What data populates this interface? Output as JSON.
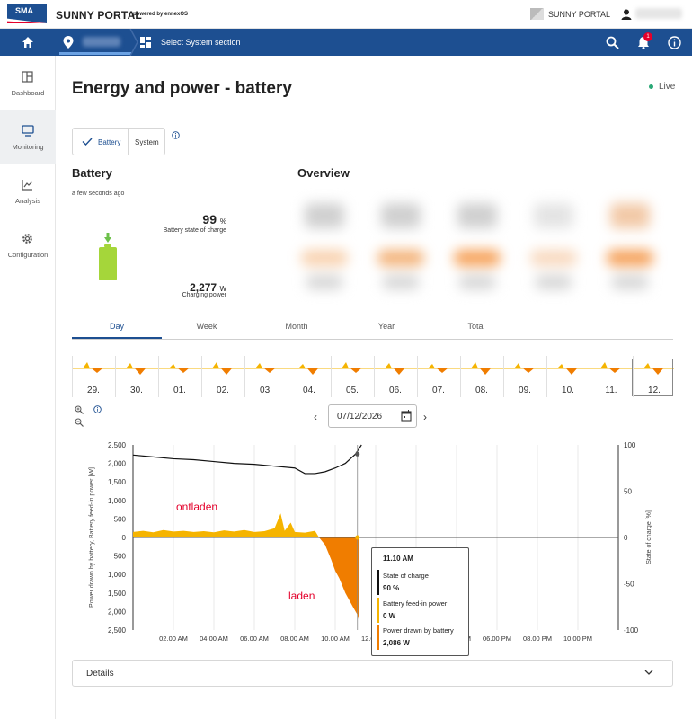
{
  "header": {
    "logo_text": "SMA",
    "brand": "SUNNY PORTAL",
    "brand_sub": "powered by ennexOS",
    "portal_link": "SUNNY PORTAL"
  },
  "nav": {
    "select_section": "Select System section",
    "notification_count": "1"
  },
  "sidebar": {
    "items": [
      {
        "label": "Dashboard",
        "icon": "dashboard-icon"
      },
      {
        "label": "Monitoring",
        "icon": "monitor-icon"
      },
      {
        "label": "Analysis",
        "icon": "chart-line-icon"
      },
      {
        "label": "Configuration",
        "icon": "gear-icon"
      }
    ]
  },
  "page": {
    "title": "Energy and power - battery",
    "live": "Live"
  },
  "toggle": {
    "option1": "Battery",
    "option2": "System"
  },
  "battery": {
    "heading": "Battery",
    "updated": "a few seconds ago",
    "soc_value": "99",
    "soc_unit": "%",
    "soc_label": "Battery state of charge",
    "power_value": "2,277",
    "power_unit": "W",
    "power_label": "Charging power"
  },
  "overview": {
    "heading": "Overview"
  },
  "tabs": [
    "Day",
    "Week",
    "Month",
    "Year",
    "Total"
  ],
  "strip_days": [
    "29.",
    "30.",
    "01.",
    "02.",
    "03.",
    "04.",
    "05.",
    "06.",
    "07.",
    "08.",
    "09.",
    "10.",
    "11.",
    "12."
  ],
  "date_picker": {
    "value": "07/12/2026"
  },
  "annotations": {
    "discharge": "ontladen",
    "charge": "laden"
  },
  "tooltip": {
    "time": "11.10 AM",
    "rows": [
      {
        "label": "State of charge",
        "value": "90 %",
        "color": "#111111"
      },
      {
        "label": "Battery feed-in power",
        "value": "0 W",
        "color": "#f5b400"
      },
      {
        "label": "Power drawn by battery",
        "value": "2,086 W",
        "color": "#f07d00"
      }
    ]
  },
  "details": {
    "label": "Details"
  },
  "colors": {
    "brand_blue": "#1d4f91",
    "feed_in": "#f5b400",
    "drawn": "#f07d00",
    "battery_green": "#a5d63a"
  },
  "chart_data": {
    "type": "area",
    "ylabel_left": "Power drawn by battery, Battery feed-in power [W]",
    "ylabel_right": "State of charge [%]",
    "y_left_ticks_top": [
      "2,500",
      "2,000",
      "1,500",
      "1,000",
      "500",
      "0"
    ],
    "y_left_ticks_bottom": [
      "500",
      "1,000",
      "1,500",
      "2,000",
      "2,500"
    ],
    "y_right_ticks": [
      "100",
      "50",
      "0",
      "-50",
      "-100"
    ],
    "x_ticks": [
      "02.00 AM",
      "04.00 AM",
      "06.00 AM",
      "08.00 AM",
      "10.00 AM",
      "12.00 PM",
      "02.00 PM",
      "04.00 PM",
      "06.00 PM",
      "08.00 PM",
      "10.00 PM"
    ],
    "xlim_hours": [
      0,
      24
    ],
    "ylim_power": [
      -2500,
      2500
    ],
    "ylim_soc": [
      -100,
      100
    ],
    "series": [
      {
        "name": "Battery feed-in power",
        "color": "#f5b400",
        "x": [
          0,
          0.5,
          1,
          1.5,
          2,
          2.5,
          3,
          3.5,
          4,
          4.5,
          5,
          5.5,
          6,
          6.5,
          7,
          7.3,
          7.5,
          7.8,
          8,
          8.5,
          9,
          9.2
        ],
        "y": [
          150,
          180,
          140,
          200,
          160,
          180,
          150,
          170,
          140,
          190,
          160,
          200,
          150,
          170,
          250,
          650,
          180,
          400,
          150,
          130,
          180,
          0
        ]
      },
      {
        "name": "Power drawn by battery",
        "color": "#f07d00",
        "x": [
          9.2,
          9.5,
          9.8,
          10,
          10.2,
          10.5,
          10.7,
          10.9,
          11.1,
          11.2
        ],
        "y": [
          0,
          -200,
          -600,
          -900,
          -1100,
          -1500,
          -1700,
          -1900,
          -2086,
          -2300
        ]
      },
      {
        "name": "State of charge",
        "color": "#111111",
        "x": [
          0,
          1,
          2,
          3,
          4,
          5,
          6,
          7,
          8,
          8.5,
          9,
          9.5,
          10,
          10.5,
          11,
          11.3
        ],
        "y": [
          89,
          87,
          85,
          84,
          82,
          80,
          79,
          77,
          75,
          69,
          69,
          71,
          75,
          80,
          90,
          100
        ]
      }
    ]
  }
}
